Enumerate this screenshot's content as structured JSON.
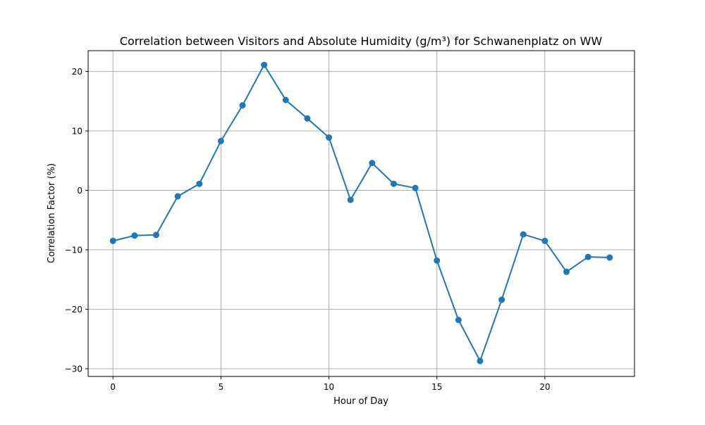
{
  "chart_data": {
    "type": "line",
    "title": "Correlation between Visitors and Absolute Humidity (g/m³) for Schwanenplatz on WW",
    "xlabel": "Hour of Day",
    "ylabel": "Correlation Factor (%)",
    "xlim": [
      -1.15,
      24.15
    ],
    "ylim": [
      -31.3,
      23.5
    ],
    "xticks": [
      0,
      5,
      10,
      15,
      20
    ],
    "yticks": [
      -30,
      -20,
      -10,
      0,
      10,
      20
    ],
    "xtick_labels": [
      "0",
      "5",
      "10",
      "15",
      "20"
    ],
    "ytick_labels": [
      "−30",
      "−20",
      "−10",
      "0",
      "10",
      "20"
    ],
    "grid": true,
    "series": [
      {
        "color": "#1f77b4",
        "marker": "circle",
        "x": [
          0,
          1,
          2,
          3,
          4,
          5,
          6,
          7,
          8,
          9,
          10,
          11,
          12,
          13,
          14,
          15,
          16,
          17,
          18,
          19,
          20,
          21,
          22,
          23
        ],
        "y": [
          -8.5,
          -7.6,
          -7.5,
          -1.0,
          1.1,
          8.3,
          14.3,
          21.1,
          15.2,
          12.1,
          8.9,
          -1.6,
          4.6,
          1.1,
          0.4,
          -11.8,
          -21.8,
          -28.7,
          -18.4,
          -7.4,
          -8.5,
          -13.7,
          -11.2,
          -11.3
        ]
      }
    ]
  }
}
